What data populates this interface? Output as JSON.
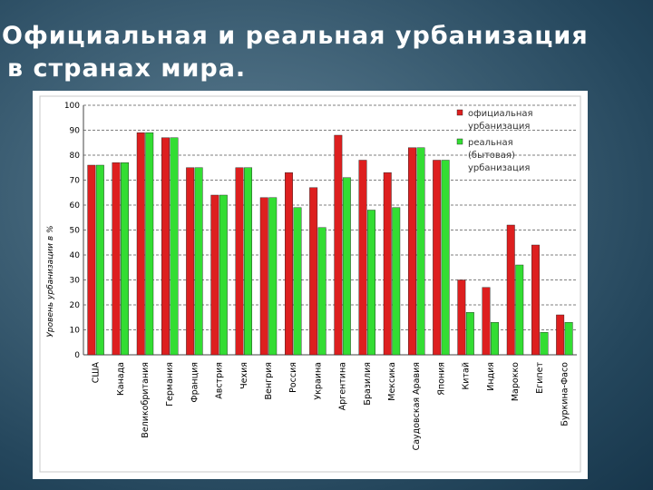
{
  "slide": {
    "title_line1": "Официальная и реальная урбанизация",
    "title_line2": "в странах мира."
  },
  "chart_data": {
    "type": "bar",
    "ylabel": "Уровень урбанизации в %",
    "xlabel": "",
    "ylim": [
      0,
      100
    ],
    "yticks": [
      0,
      10,
      20,
      30,
      40,
      50,
      60,
      70,
      80,
      90,
      100
    ],
    "grid": true,
    "legend_position": "top-right",
    "categories": [
      "США",
      "Канада",
      "Великобритания",
      "Германия",
      "Франция",
      "Австрия",
      "Чехия",
      "Венгрия",
      "Россия",
      "Украина",
      "Аргентина",
      "Бразилия",
      "Мексика",
      "Саудовская Аравия",
      "Япония",
      "Китай",
      "Индия",
      "Марокко",
      "Египет",
      "Буркина-Фасо"
    ],
    "series": [
      {
        "name": "официальная урбанизация",
        "legend_lines": [
          "официальная",
          "урбанизация"
        ],
        "color": "#dd1f1f",
        "values": [
          76,
          77,
          89,
          87,
          75,
          64,
          75,
          63,
          73,
          67,
          88,
          78,
          73,
          83,
          78,
          30,
          27,
          52,
          44,
          16
        ]
      },
      {
        "name": "реальная (бытовая) урбанизация",
        "legend_lines": [
          "реальная",
          "(бытовая)",
          "урбанизация"
        ],
        "color": "#33dd33",
        "values": [
          76,
          77,
          89,
          87,
          75,
          64,
          75,
          63,
          59,
          51,
          71,
          58,
          59,
          83,
          78,
          17,
          13,
          36,
          9,
          13
        ]
      }
    ]
  }
}
